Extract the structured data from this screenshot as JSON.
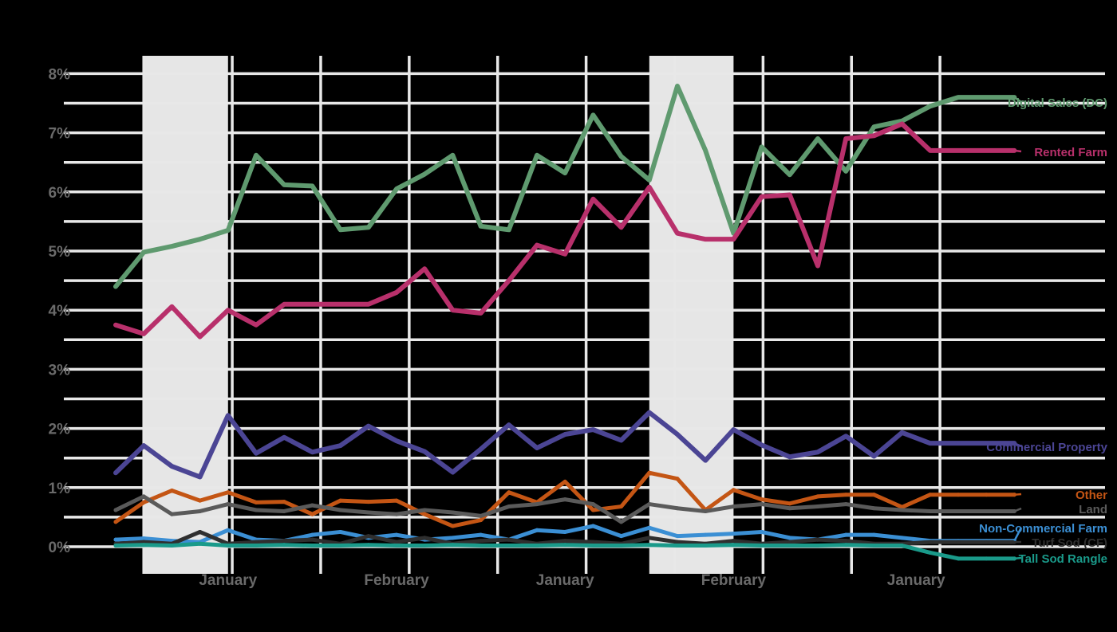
{
  "chart_data": {
    "type": "line",
    "title": "",
    "xlabel": "",
    "ylabel": "",
    "ylim": [
      0,
      8
    ],
    "y_ticks": [
      0,
      1,
      2,
      3,
      4,
      5,
      6,
      7,
      8
    ],
    "y_tick_labels": [
      "0%",
      "1%",
      "2%",
      "3%",
      "4%",
      "5%",
      "6%",
      "7%",
      "8%"
    ],
    "x_points": 33,
    "x_tick_labels": [
      "January",
      "February",
      "January",
      "February",
      "January"
    ],
    "x_tick_index": [
      4,
      10,
      16,
      22,
      28.5
    ],
    "recession_shading": [
      [
        1,
        4
      ],
      [
        19,
        22
      ]
    ],
    "grid": true,
    "legend": "labels at right end of each line",
    "series": [
      {
        "name": "Digital Sales (DC)",
        "color": "#5f9a6f",
        "values": [
          4.4,
          4.98,
          5.08,
          5.2,
          5.35,
          6.62,
          6.12,
          6.1,
          5.36,
          5.4,
          6.05,
          6.3,
          6.62,
          5.42,
          5.36,
          6.62,
          6.32,
          7.3,
          6.6,
          6.2,
          7.79,
          6.7,
          5.3,
          6.76,
          6.29,
          6.9,
          6.35,
          7.1,
          7.2,
          7.45,
          7.6,
          7.6,
          7.6
        ]
      },
      {
        "name": "Rented Farm",
        "color": "#b8306b",
        "values": [
          3.75,
          3.6,
          4.06,
          3.55,
          4.0,
          3.75,
          4.1,
          4.1,
          4.1,
          4.1,
          4.3,
          4.7,
          4.0,
          3.95,
          4.5,
          5.1,
          4.95,
          5.88,
          5.4,
          6.08,
          5.3,
          5.2,
          5.2,
          5.92,
          5.95,
          4.75,
          6.9,
          6.95,
          7.15,
          6.7,
          6.7,
          6.7,
          6.7
        ]
      },
      {
        "name": "Commercial Property",
        "color": "#4b4594",
        "values": [
          1.25,
          1.71,
          1.36,
          1.18,
          2.22,
          1.58,
          1.85,
          1.6,
          1.71,
          2.04,
          1.79,
          1.61,
          1.26,
          1.65,
          2.06,
          1.67,
          1.9,
          1.98,
          1.8,
          2.27,
          1.9,
          1.46,
          1.98,
          1.72,
          1.52,
          1.6,
          1.87,
          1.53,
          1.93,
          1.75,
          1.75,
          1.75,
          1.75
        ]
      },
      {
        "name": "Other",
        "color": "#c45514",
        "values": [
          0.42,
          0.75,
          0.95,
          0.78,
          0.92,
          0.75,
          0.76,
          0.55,
          0.78,
          0.76,
          0.78,
          0.55,
          0.35,
          0.45,
          0.92,
          0.75,
          1.1,
          0.62,
          0.68,
          1.25,
          1.15,
          0.62,
          0.96,
          0.8,
          0.73,
          0.85,
          0.88,
          0.88,
          0.67,
          0.88,
          0.88,
          0.88,
          0.88
        ]
      },
      {
        "name": "Land",
        "color": "#5a5a5a",
        "values": [
          0.62,
          0.85,
          0.55,
          0.6,
          0.72,
          0.62,
          0.6,
          0.7,
          0.62,
          0.58,
          0.55,
          0.62,
          0.58,
          0.52,
          0.68,
          0.72,
          0.8,
          0.72,
          0.42,
          0.72,
          0.65,
          0.6,
          0.68,
          0.72,
          0.65,
          0.68,
          0.72,
          0.65,
          0.62,
          0.6,
          0.6,
          0.6,
          0.6
        ]
      },
      {
        "name": "Non-Commercial Farm",
        "color": "#3b8fd4",
        "values": [
          0.12,
          0.14,
          0.1,
          0.08,
          0.28,
          0.12,
          0.1,
          0.2,
          0.25,
          0.15,
          0.2,
          0.12,
          0.15,
          0.2,
          0.12,
          0.28,
          0.25,
          0.35,
          0.18,
          0.32,
          0.18,
          0.2,
          0.22,
          0.25,
          0.15,
          0.12,
          0.2,
          0.2,
          0.15,
          0.1,
          0.1,
          0.1,
          0.1
        ]
      },
      {
        "name": "Turf Sod (CF)",
        "color": "#2f2f2f",
        "values": [
          0.05,
          0.08,
          0.05,
          0.25,
          0.05,
          0.08,
          0.1,
          0.12,
          0.05,
          0.18,
          0.08,
          0.15,
          0.05,
          0.1,
          0.12,
          0.05,
          0.1,
          0.08,
          0.05,
          0.15,
          0.08,
          0.05,
          0.1,
          0.05,
          0.08,
          0.12,
          0.1,
          0.05,
          0.05,
          0.08,
          0.08,
          0.08,
          0.08
        ]
      },
      {
        "name": "Tall Sod Rangle",
        "color": "#1a9a8a",
        "values": [
          0.02,
          0.03,
          0.02,
          0.05,
          0.02,
          0.02,
          0.03,
          0.02,
          0.02,
          0.03,
          0.02,
          0.02,
          0.03,
          0.02,
          0.02,
          0.02,
          0.03,
          0.02,
          0.02,
          0.03,
          0.02,
          0.02,
          0.03,
          0.02,
          0.02,
          0.02,
          0.03,
          0.02,
          0.02,
          -0.1,
          -0.2,
          -0.2,
          -0.2
        ]
      }
    ]
  }
}
